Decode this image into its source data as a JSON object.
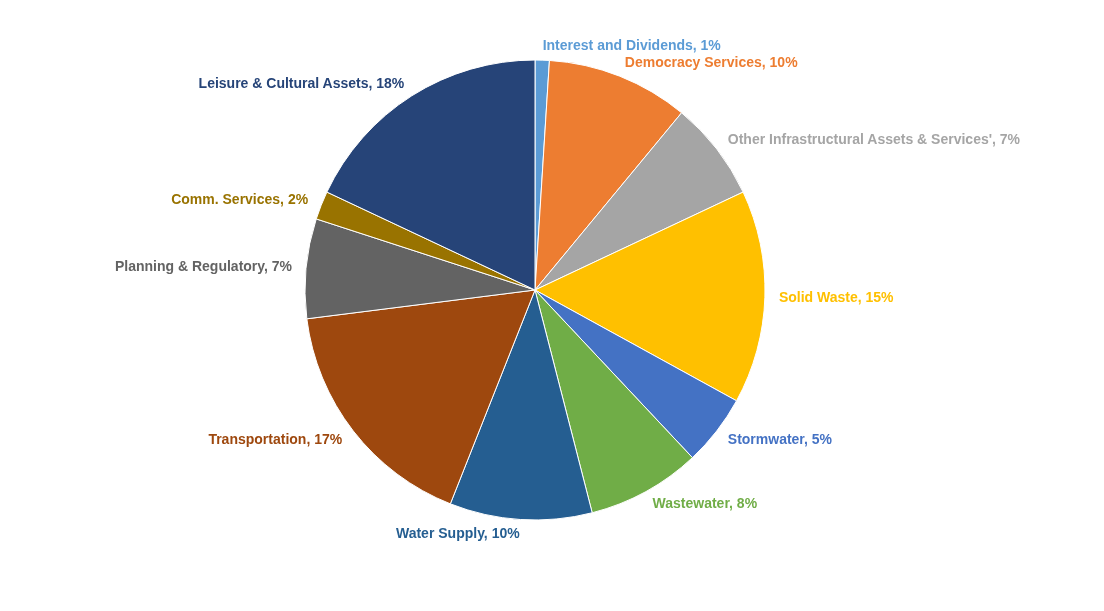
{
  "chart_data": {
    "type": "pie",
    "categories": [
      "Interest and Dividends",
      "Democracy Services",
      "Other Infrastructural Assets & Services'",
      "Solid Waste",
      "Stormwater",
      "Wastewater",
      "Water Supply",
      "Transportation",
      "Planning & Regulatory",
      "Comm. Services",
      "Leisure & Cultural Assets"
    ],
    "values": [
      1,
      10,
      7,
      15,
      5,
      8,
      10,
      17,
      7,
      2,
      18
    ],
    "value_labels": [
      "1%",
      "10%",
      "7%",
      "15%",
      "5%",
      "8%",
      "10%",
      "17%",
      "7%",
      "2%",
      "18%"
    ],
    "colors": [
      "#5b9bd5",
      "#ed7d31",
      "#a5a5a5",
      "#ffc000",
      "#4472c4",
      "#70ad47",
      "#255e91",
      "#9e480e",
      "#636363",
      "#997300",
      "#264478"
    ],
    "legend": false
  }
}
